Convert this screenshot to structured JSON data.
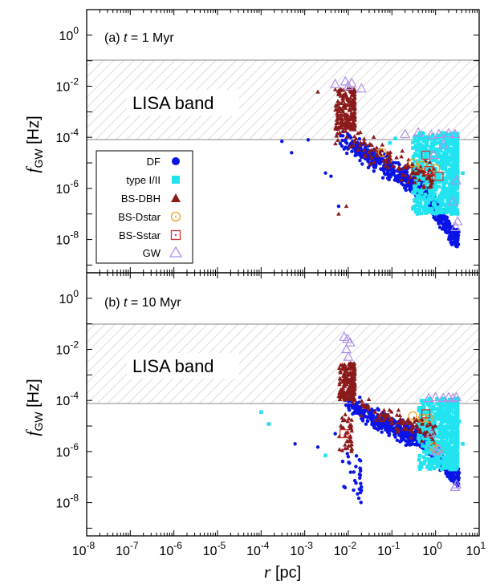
{
  "chart_data": [
    {
      "type": "scatter",
      "panel_label_prefix": "(a)",
      "panel_label_var": "t",
      "panel_label_suffix": "= 1 Myr",
      "band_label": "LISA band",
      "band_range": [
        0.0001,
        0.1
      ],
      "xscale": "log",
      "yscale": "log",
      "xlim": [
        1e-08,
        10
      ],
      "ylim": [
        5e-10,
        10
      ],
      "ytick_exponents": [
        0,
        -2,
        -4,
        -6,
        -8
      ],
      "legend": {
        "position": "lower-left",
        "entries": [
          "DF",
          "type I/II",
          "BS-DBH",
          "BS-Dstar",
          "BS-Sstar",
          "GW"
        ]
      },
      "series": [
        {
          "name": "DF",
          "marker": "circle",
          "color": "#0a14e6",
          "clusters": [
            {
              "x_range": [
                0.006,
                3.5
              ],
              "y_trend": [
                [
                  0.006,
                  0.0001
                ],
                [
                  0.05,
                  1e-05
                ],
                [
                  0.5,
                  1e-06
                ],
                [
                  3.0,
                  1e-08
                ]
              ],
              "spread_dex": 0.5,
              "n": 700
            }
          ],
          "points": [
            [
              0.0003,
              7e-05
            ],
            [
              0.0005,
              2.5e-05
            ],
            [
              0.0012,
              8e-05
            ],
            [
              0.004,
              3e-06
            ],
            [
              0.003,
              4e-06
            ],
            [
              0.006,
              2e-07
            ]
          ]
        },
        {
          "name": "type I/II",
          "marker": "square",
          "color": "#22e4f0",
          "clusters": [
            {
              "x_range": [
                0.3,
                3.2
              ],
              "y_range": [
                1e-07,
                0.00015
              ],
              "n": 750
            }
          ],
          "points": [
            [
              0.12,
              9e-05
            ],
            [
              0.09,
              6e-05
            ],
            [
              4.2,
              4e-06
            ]
          ]
        },
        {
          "name": "BS-DBH",
          "marker": "triangle",
          "color": "#8b1a1a",
          "clusters": [
            {
              "x_range": [
                0.005,
                0.014
              ],
              "y_range": [
                0.0002,
                0.008
              ],
              "n": 220
            },
            {
              "x_range": [
                0.004,
                1.0
              ],
              "y_trend": [
                [
                  0.005,
                  0.0002
                ],
                [
                  0.05,
                  2e-05
                ],
                [
                  0.5,
                  3e-06
                ]
              ],
              "spread_dex": 0.6,
              "n": 120
            }
          ],
          "points": [
            [
              0.002,
              0.006
            ],
            [
              0.006,
              1e-07
            ],
            [
              0.009,
              2e-07
            ]
          ]
        },
        {
          "name": "BS-Dstar",
          "marker": "open-circle",
          "color": "#f0a020",
          "points": [
            [
              0.06,
              2.5e-05
            ],
            [
              0.5,
              8e-06
            ],
            [
              1.0,
              6e-06
            ],
            [
              0.3,
              1e-05
            ]
          ]
        },
        {
          "name": "BS-Sstar",
          "marker": "open-square",
          "color": "#d63030",
          "points": [
            [
              0.7,
              5e-06
            ],
            [
              1.2,
              3e-06
            ],
            [
              0.6,
              2e-05
            ]
          ]
        },
        {
          "name": "GW",
          "marker": "open-triangle",
          "color": "#b090e8",
          "points": [
            [
              0.005,
              0.012
            ],
            [
              0.0085,
              0.015
            ],
            [
              0.012,
              0.013
            ],
            [
              0.01,
              0.01
            ],
            [
              0.02,
              0.008
            ],
            [
              0.2,
              0.00013
            ],
            [
              0.4,
              0.00015
            ],
            [
              0.8,
              0.00012
            ],
            [
              1.2,
              0.00013
            ],
            [
              2.0,
              0.00014
            ],
            [
              2.8,
              0.00013
            ],
            [
              3.0,
              2e-06
            ],
            [
              2.5,
              3e-07
            ],
            [
              3.2,
              5e-08
            ],
            [
              2.9,
              3e-08
            ],
            [
              1.5,
              5e-05
            ],
            [
              0.9,
              2e-05
            ]
          ]
        }
      ]
    },
    {
      "type": "scatter",
      "panel_label_prefix": "(b)",
      "panel_label_var": "t",
      "panel_label_suffix": "= 10 Myr",
      "band_label": "LISA band",
      "band_range": [
        0.0001,
        0.1
      ],
      "xscale": "log",
      "yscale": "log",
      "xlim": [
        1e-08,
        10
      ],
      "ylim": [
        5e-10,
        10
      ],
      "ytick_exponents": [
        0,
        -2,
        -4,
        -6,
        -8
      ],
      "series": [
        {
          "name": "DF",
          "marker": "circle",
          "color": "#0a14e6",
          "clusters": [
            {
              "x_range": [
                0.008,
                3.5
              ],
              "y_trend": [
                [
                  0.008,
                  0.0001
                ],
                [
                  0.05,
                  1.5e-05
                ],
                [
                  0.5,
                  3e-06
                ],
                [
                  3.0,
                  1e-07
                ]
              ],
              "spread_dex": 0.45,
              "n": 650
            },
            {
              "x_range": [
                0.007,
                0.02
              ],
              "y_range": [
                1e-08,
                1e-06
              ],
              "n": 30
            }
          ],
          "points": [
            [
              0.0006,
              2e-06
            ],
            [
              0.002,
              1.5e-06
            ],
            [
              0.005,
              5e-06
            ]
          ]
        },
        {
          "name": "type I/II",
          "marker": "square",
          "color": "#22e4f0",
          "clusters": [
            {
              "x_range": [
                0.4,
                3.2
              ],
              "y_range": [
                2e-07,
                0.00012
              ],
              "n": 650
            }
          ],
          "points": [
            [
              0.0001,
              3.5e-05
            ],
            [
              0.00015,
              1.2e-05
            ],
            [
              0.003,
              7e-07
            ],
            [
              3.5,
              1.5e-05
            ],
            [
              4.2,
              2e-06
            ]
          ]
        },
        {
          "name": "BS-DBH",
          "marker": "triangle",
          "color": "#8b1a1a",
          "clusters": [
            {
              "x_range": [
                0.006,
                0.014
              ],
              "y_range": [
                0.0001,
                0.003
              ],
              "n": 200
            },
            {
              "x_range": [
                0.006,
                0.012
              ],
              "y_range": [
                1e-06,
                3e-05
              ],
              "n": 40
            },
            {
              "x_range": [
                0.008,
                1.0
              ],
              "y_trend": [
                [
                  0.01,
                  0.0001
                ],
                [
                  0.1,
                  2e-05
                ],
                [
                  1.0,
                  5e-06
                ]
              ],
              "spread_dex": 0.5,
              "n": 100
            }
          ]
        },
        {
          "name": "BS-Dstar",
          "marker": "open-circle",
          "color": "#f0a020",
          "points": [
            [
              0.3,
              2.5e-05
            ],
            [
              0.5,
              2e-05
            ],
            [
              0.9,
              1.5e-06
            ],
            [
              1.1,
              1.2e-06
            ],
            [
              0.7,
              2e-05
            ]
          ]
        },
        {
          "name": "BS-Sstar",
          "marker": "open-square",
          "color": "#d63030",
          "points": [
            [
              0.008,
              5e-06
            ],
            [
              0.6,
              3e-05
            ]
          ]
        },
        {
          "name": "GW",
          "marker": "open-triangle",
          "color": "#b090e8",
          "points": [
            [
              0.008,
              0.03
            ],
            [
              0.0095,
              0.025
            ],
            [
              0.011,
              0.018
            ],
            [
              0.009,
              0.01
            ],
            [
              0.01,
              0.005
            ],
            [
              0.7,
              0.00012
            ],
            [
              1.0,
              0.00013
            ],
            [
              1.5,
              0.00012
            ],
            [
              2.0,
              0.00013
            ],
            [
              2.5,
              0.00012
            ],
            [
              3.0,
              0.00013
            ],
            [
              1.0,
              1e-06
            ],
            [
              1.2,
              1.2e-06
            ],
            [
              3.0,
              5e-08
            ],
            [
              2.8,
              4e-08
            ],
            [
              0.8,
              5e-06
            ]
          ]
        }
      ]
    }
  ],
  "axes": {
    "x_label_var": "r",
    "x_label_unit": "[pc]",
    "x_tick_exponents": [
      -8,
      -7,
      -6,
      -5,
      -4,
      -3,
      -2,
      -1,
      0,
      1
    ],
    "y_label_var": "f",
    "y_label_sub": "GW",
    "y_label_unit": "[Hz]",
    "tick_base": "10"
  },
  "colors": {
    "band_fill": "#ffffff",
    "band_hatch": "#c8c8c8",
    "band_edge": "#a0a0a0",
    "frame": "#000000"
  }
}
